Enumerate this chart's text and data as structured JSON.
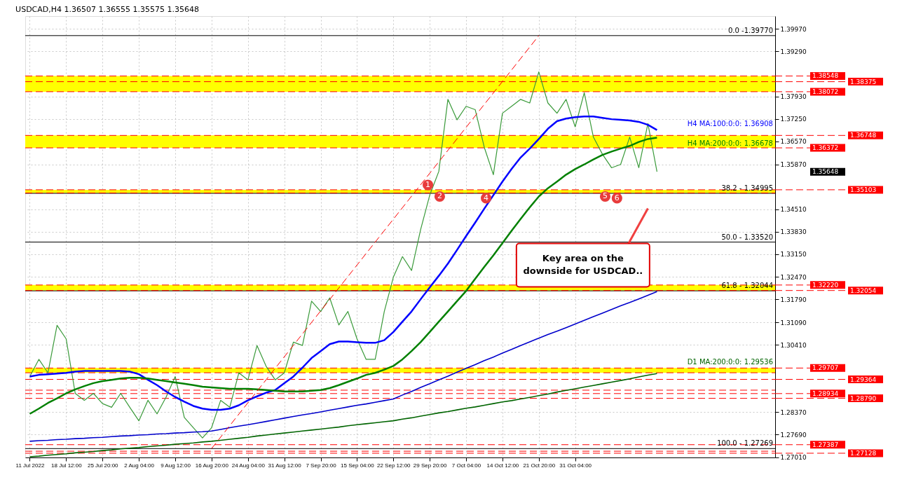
{
  "chart_data": {
    "type": "line",
    "title": "USDCAD,H4  1.36507 1.36555 1.35575 1.35648",
    "categories": [
      "11 Jul 2022",
      null,
      null,
      null,
      "18 Jul 12:00",
      null,
      null,
      null,
      "25 Jul 20:00",
      null,
      null,
      null,
      "2 Aug 04:00",
      null,
      null,
      null,
      "9 Aug 12:00",
      null,
      null,
      null,
      "16 Aug 20:00",
      null,
      null,
      null,
      "24 Aug 04:00",
      null,
      null,
      null,
      "31 Aug 12:00",
      null,
      null,
      null,
      "7 Sep 20:00",
      null,
      null,
      null,
      "15 Sep 04:00",
      null,
      null,
      null,
      "22 Sep 12:00",
      null,
      null,
      null,
      "29 Sep 20:00",
      null,
      null,
      null,
      "7 Oct 04:00",
      null,
      null,
      null,
      "14 Oct 12:00",
      null,
      null,
      null,
      "21 Oct 20:00",
      null,
      null,
      null,
      "31 Oct 04:00",
      null,
      null,
      null,
      null,
      null,
      null,
      null,
      null,
      null
    ],
    "series": [
      {
        "type": "line",
        "color": "#3a9a3a",
        "values": [
          1.2945,
          1.2997,
          1.2956,
          1.31,
          1.3059,
          1.2894,
          1.2873,
          1.2894,
          1.2863,
          1.2852,
          1.2894,
          1.2852,
          1.2811,
          1.2873,
          1.2832,
          1.2883,
          1.2945,
          1.2821,
          1.279,
          1.2759,
          1.279,
          1.2873,
          1.2852,
          1.2956,
          1.2935,
          1.3039,
          1.2976,
          1.2935,
          1.2956,
          1.3049,
          1.3039,
          1.3173,
          1.3142,
          1.3183,
          1.3101,
          1.3142,
          1.3059,
          1.2997,
          1.2997,
          1.3142,
          1.3246,
          1.3308,
          1.3266,
          1.339,
          1.3494,
          1.3566,
          1.3784,
          1.3722,
          1.3763,
          1.3753,
          1.3639,
          1.3556,
          1.3742,
          1.3763,
          1.3784,
          1.3773,
          1.3867,
          1.3773,
          1.3742,
          1.3784,
          1.3701,
          1.3804,
          1.367,
          1.3618,
          1.3577,
          1.3587,
          1.367,
          1.3577,
          1.3711,
          1.35648
        ]
      },
      {
        "type": "line",
        "name": "H4 MA:100:0:0: 1.36908",
        "color": "#0000ff",
        "values": [
          1.2945,
          1.295,
          1.2952,
          1.2954,
          1.2956,
          1.296,
          1.2962,
          1.2962,
          1.2962,
          1.2962,
          1.2962,
          1.296,
          1.2952,
          1.2935,
          1.2919,
          1.29,
          1.2883,
          1.2869,
          1.2856,
          1.2848,
          1.2844,
          1.2844,
          1.2848,
          1.2858,
          1.2873,
          1.2885,
          1.2896,
          1.2904,
          1.2925,
          1.2945,
          1.2972,
          1.3001,
          1.3022,
          1.3043,
          1.3051,
          1.3051,
          1.3049,
          1.3047,
          1.3047,
          1.3055,
          1.308,
          1.3111,
          1.3142,
          1.3179,
          1.3215,
          1.325,
          1.3287,
          1.3328,
          1.337,
          1.3411,
          1.3453,
          1.3494,
          1.3535,
          1.3573,
          1.3608,
          1.3635,
          1.3664,
          1.3695,
          1.3718,
          1.3726,
          1.373,
          1.3732,
          1.3732,
          1.3728,
          1.3724,
          1.3722,
          1.372,
          1.3716,
          1.3707,
          1.3691
        ]
      },
      {
        "type": "line",
        "name": "H4 MA:200:0:0: 1.36678",
        "color": "#008000",
        "values": [
          1.2832,
          1.2848,
          1.2865,
          1.2879,
          1.2894,
          1.2906,
          1.2916,
          1.2925,
          1.2931,
          1.2935,
          1.2939,
          1.2941,
          1.2941,
          1.2939,
          1.2935,
          1.2931,
          1.2927,
          1.2923,
          1.2919,
          1.2914,
          1.2912,
          1.291,
          1.2908,
          1.2908,
          1.2908,
          1.2906,
          1.2904,
          1.2902,
          1.29,
          1.29,
          1.29,
          1.2902,
          1.2904,
          1.291,
          1.2919,
          1.2929,
          1.2939,
          1.295,
          1.2956,
          1.2966,
          1.2977,
          1.2997,
          1.3022,
          1.3049,
          1.308,
          1.3111,
          1.3142,
          1.3173,
          1.3204,
          1.3241,
          1.3277,
          1.3312,
          1.3349,
          1.3386,
          1.3422,
          1.3457,
          1.349,
          1.3515,
          1.3535,
          1.3556,
          1.3573,
          1.3587,
          1.3602,
          1.3616,
          1.3626,
          1.3635,
          1.3643,
          1.3655,
          1.3664,
          1.3668
        ]
      },
      {
        "type": "line",
        "color": "#0000cc",
        "values": [
          1.2749,
          1.2751,
          1.2752,
          1.2754,
          1.2755,
          1.2757,
          1.2758,
          1.276,
          1.2761,
          1.2763,
          1.2765,
          1.2766,
          1.2768,
          1.2769,
          1.2771,
          1.2772,
          1.2774,
          1.2775,
          1.2777,
          1.2778,
          1.278,
          1.2785,
          1.279,
          1.2795,
          1.2799,
          1.2804,
          1.2809,
          1.2814,
          1.2819,
          1.2824,
          1.2829,
          1.2833,
          1.2838,
          1.2843,
          1.2848,
          1.2853,
          1.2858,
          1.2862,
          1.2867,
          1.2872,
          1.2877,
          1.2889,
          1.29,
          1.2912,
          1.2923,
          1.2935,
          1.2946,
          1.2958,
          1.297,
          1.2981,
          1.2993,
          1.3004,
          1.3016,
          1.3027,
          1.3039,
          1.305,
          1.3061,
          1.3072,
          1.3082,
          1.3093,
          1.3104,
          1.3115,
          1.3126,
          1.3137,
          1.3148,
          1.3159,
          1.3169,
          1.318,
          1.3191,
          1.3202
        ]
      },
      {
        "type": "line",
        "name": "D1 MA:200:0:0: 1.29536",
        "color": "#006400",
        "values": [
          1.2702,
          1.2704,
          1.2707,
          1.2709,
          1.2711,
          1.2714,
          1.2716,
          1.2718,
          1.2721,
          1.2723,
          1.2726,
          1.2728,
          1.273,
          1.2733,
          1.2735,
          1.2737,
          1.274,
          1.2742,
          1.2744,
          1.2747,
          1.2749,
          1.2752,
          1.2755,
          1.2758,
          1.2761,
          1.2765,
          1.2768,
          1.2771,
          1.2774,
          1.2777,
          1.278,
          1.2783,
          1.2786,
          1.2789,
          1.2792,
          1.2796,
          1.2799,
          1.2802,
          1.2805,
          1.2808,
          1.2811,
          1.2816,
          1.282,
          1.2825,
          1.283,
          1.2835,
          1.2839,
          1.2844,
          1.2849,
          1.2853,
          1.2858,
          1.2863,
          1.2868,
          1.2872,
          1.2877,
          1.2882,
          1.2887,
          1.2892,
          1.2898,
          1.2903,
          1.2908,
          1.2913,
          1.2918,
          1.2923,
          1.2928,
          1.2933,
          1.2938,
          1.2944,
          1.2949,
          1.2954
        ]
      },
      {
        "type": "line",
        "color": "#ff0000",
        "line_style": "dashed",
        "values": [
          null,
          null,
          null,
          null,
          null,
          null,
          null,
          null,
          null,
          null,
          null,
          null,
          null,
          null,
          null,
          null,
          null,
          null,
          null,
          null,
          1.27269,
          null,
          null,
          null,
          null,
          null,
          null,
          null,
          null,
          null,
          null,
          null,
          null,
          null,
          null,
          null,
          null,
          null,
          null,
          null,
          null,
          null,
          null,
          null,
          null,
          null,
          null,
          null,
          null,
          null,
          null,
          null,
          null,
          null,
          null,
          null,
          1.3977,
          null,
          null,
          null,
          null,
          null,
          null,
          null,
          null,
          null,
          null,
          null,
          null,
          null
        ]
      }
    ],
    "ylim": [
      1.27,
      1.4036
    ],
    "yticks": [
      {
        "value": 1.3997,
        "label": "1.39970"
      },
      {
        "value": 1.3929,
        "label": "1.39290"
      },
      {
        "value": 1.3793,
        "label": "1.37930"
      },
      {
        "value": 1.3725,
        "label": "1.37250"
      },
      {
        "value": 1.3657,
        "label": "1.36570"
      },
      {
        "value": 1.3587,
        "label": "1.35870"
      },
      {
        "value": 1.3451,
        "label": "1.34510"
      },
      {
        "value": 1.3383,
        "label": "1.33830"
      },
      {
        "value": 1.3315,
        "label": "1.33150"
      },
      {
        "value": 1.3247,
        "label": "1.32470"
      },
      {
        "value": 1.3179,
        "label": "1.31790"
      },
      {
        "value": 1.3109,
        "label": "1.31090"
      },
      {
        "value": 1.3041,
        "label": "1.30410"
      },
      {
        "value": 1.2837,
        "label": "1.28370"
      },
      {
        "value": 1.2769,
        "label": "1.27690"
      },
      {
        "value": 1.2701,
        "label": "1.27010"
      }
    ],
    "grid": true,
    "bands": [
      {
        "axis": "y",
        "from": 1.38072,
        "to": 1.38548,
        "color": "#ffff00"
      },
      {
        "axis": "y",
        "from": 1.36372,
        "to": 1.36748,
        "color": "#ffff00"
      },
      {
        "axis": "y",
        "from": 1.35007,
        "to": 1.35103,
        "color": "#ffff00"
      },
      {
        "axis": "y",
        "from": 1.32054,
        "to": 1.3222,
        "color": "#ffff00"
      },
      {
        "axis": "y",
        "from": 1.29564,
        "to": 1.29707,
        "color": "#ffff00"
      }
    ],
    "ref_lines": [
      {
        "axis": "y",
        "value": 1.3977,
        "color": "#000000",
        "line_style": "solid"
      },
      {
        "axis": "y",
        "value": 1.34995,
        "color": "#000000",
        "line_style": "solid"
      },
      {
        "axis": "y",
        "value": 1.3352,
        "color": "#000000",
        "line_style": "solid"
      },
      {
        "axis": "y",
        "value": 1.32044,
        "color": "#000000",
        "line_style": "solid"
      },
      {
        "axis": "y",
        "value": 1.27269,
        "color": "#000000",
        "line_style": "solid"
      },
      {
        "axis": "y",
        "value": 1.38548,
        "label": "1.38548",
        "color": "#ff0000",
        "line_style": "dashed"
      },
      {
        "axis": "y",
        "value": 1.38375,
        "label": "1.38375",
        "color": "#ff0000",
        "line_style": "dashed"
      },
      {
        "axis": "y",
        "value": 1.38072,
        "label": "1.38072",
        "color": "#ff0000",
        "line_style": "dashed"
      },
      {
        "axis": "y",
        "value": 1.36748,
        "label": "1.36748",
        "color": "#ff0000",
        "line_style": "dashed"
      },
      {
        "axis": "y",
        "value": 1.36372,
        "label": "1.36372",
        "color": "#ff0000",
        "line_style": "dashed"
      },
      {
        "axis": "y",
        "value": 1.35103,
        "label": "1.35103",
        "color": "#ff0000",
        "line_style": "dashed"
      },
      {
        "axis": "y",
        "value": 1.35007,
        "label": null,
        "color": "#ff0000",
        "line_style": "dashed"
      },
      {
        "axis": "y",
        "value": 1.3222,
        "label": "1.32220",
        "color": "#ff0000",
        "line_style": "dashed"
      },
      {
        "axis": "y",
        "value": 1.32054,
        "label": "1.32054",
        "color": "#ff0000",
        "line_style": "dashed"
      },
      {
        "axis": "y",
        "value": 1.29707,
        "label": "1.29707",
        "color": "#ff0000",
        "line_style": "dashed"
      },
      {
        "axis": "y",
        "value": 1.29564,
        "label": null,
        "color": "#ff0000",
        "line_style": "dashed"
      },
      {
        "axis": "y",
        "value": 1.29364,
        "label": "1.29364",
        "color": "#ff0000",
        "line_style": "dashed"
      },
      {
        "axis": "y",
        "value": 1.29037,
        "label": null,
        "color": "#ff0000",
        "line_style": "dashed"
      },
      {
        "axis": "y",
        "value": 1.28934,
        "label": "1.28934",
        "color": "#ff0000",
        "line_style": "dashed"
      },
      {
        "axis": "y",
        "value": 1.2879,
        "label": "1.28790",
        "color": "#ff0000",
        "line_style": "dashed"
      },
      {
        "axis": "y",
        "value": 1.27387,
        "label": "1.27387",
        "color": "#ff0000",
        "line_style": "dashed"
      },
      {
        "axis": "y",
        "value": 1.27189,
        "label": null,
        "color": "#ff0000",
        "line_style": "dashed"
      },
      {
        "axis": "y",
        "value": 1.27128,
        "label": "1.27128",
        "color": "#ff0000",
        "line_style": "dashed"
      }
    ],
    "annotations": [
      "Key area on the downside for USDCAD..",
      {
        "text": "1",
        "y": 1.3525
      },
      {
        "text": "2",
        "y": 1.349
      },
      {
        "text": "4",
        "y": 1.3485
      },
      {
        "text": "5",
        "y": 1.349
      },
      {
        "text": "6",
        "y": 1.3485
      },
      "1.35648",
      {
        "text": "0.0 -1.39770",
        "y": 1.3977
      },
      {
        "text": "38.2 - 1.34995",
        "y": 1.34995
      },
      {
        "text": "50.0 - 1.33520",
        "y": 1.3352
      },
      {
        "text": "61.8 - 1.32044",
        "y": 1.32044
      },
      {
        "text": "100.0 - 1.27269",
        "y": 1.27269
      }
    ]
  }
}
